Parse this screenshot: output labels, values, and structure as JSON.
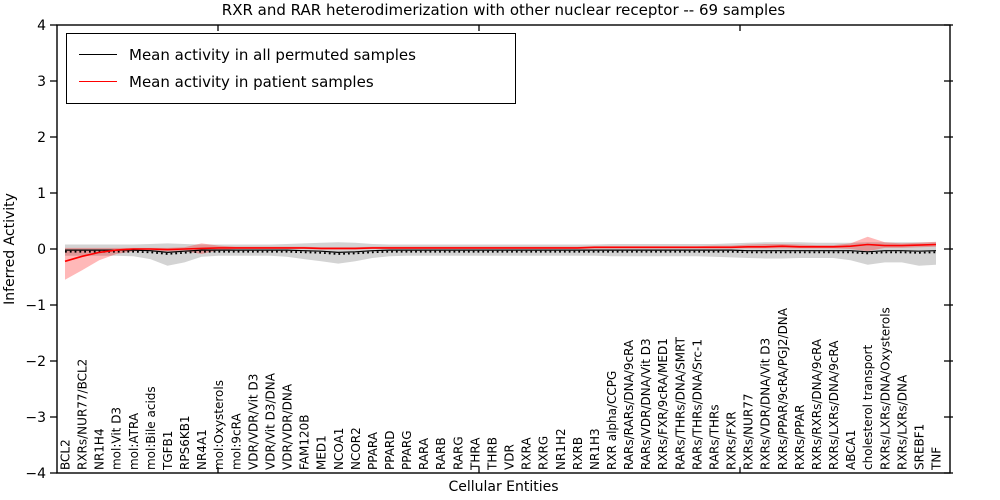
{
  "title": "RXR and RAR heterodimerization with other nuclear receptor -- 69 samples",
  "legend": {
    "items": [
      {
        "label": "Mean activity in all permuted samples",
        "color": "#000000"
      },
      {
        "label": "Mean activity in patient samples",
        "color": "#ff0000"
      }
    ]
  },
  "chart_data": {
    "type": "line",
    "title": "RXR and RAR heterodimerization with other nuclear receptor -- 69 samples",
    "xlabel": "Cellular Entities",
    "ylabel": "Inferred Activity",
    "ylim": [
      -4,
      4
    ],
    "yticks": [
      4,
      3,
      2,
      1,
      0,
      -1,
      -2,
      -3,
      -4
    ],
    "grid": false,
    "legend_position": "upper left",
    "categories": [
      "BCL2",
      "RXRs/NUR77/BCL2",
      "NR1H4",
      "mol:Vit D3",
      "mol:ATRA",
      "mol:Bile acids",
      "TGFB1",
      "RPS6KB1",
      "NR4A1",
      "mol:Oxysterols",
      "mol:9cRA",
      "VDR/VDR/Vit D3",
      "VDR/Vit D3/DNA",
      "VDR/VDR/DNA",
      "FAM120B",
      "MED1",
      "NCOA1",
      "NCOR2",
      "PPARA",
      "PPARD",
      "PPARG",
      "RARA",
      "RARB",
      "RARG",
      "THRA",
      "THRB",
      "VDR",
      "RXRA",
      "RXRG",
      "NR1H2",
      "RXRB",
      "NR1H3",
      "RXR alpha/CCPG",
      "RARs/RARs/DNA/9cRA",
      "RARs/VDR/DNA/Vit D3",
      "RXRs/FXR/9cRA/MED1",
      "RARs/THRs/DNA/SMRT",
      "RARs/THRs/DNA/Src-1",
      "RARs/THRs",
      "RXRs/FXR",
      "RXRs/NUR77",
      "RXRs/VDR/DNA/Vit D3",
      "RXRs/PPAR/9cRA/PGJ2/DNA",
      "RXRs/PPAR",
      "RXRs/RXRs/DNA/9cRA",
      "RXRs/LXRs/DNA/9cRA",
      "ABCA1",
      "cholesterol transport",
      "RXRs/LXRs/DNA/Oxysterols",
      "RXRs/LXRs/DNA",
      "SREBF1",
      "TNF"
    ],
    "series": [
      {
        "name": "Mean activity in all permuted samples",
        "color": "#000000",
        "band_color": "rgba(128,128,128,0.35)",
        "overlay_dotted": true,
        "values": [
          -0.02,
          -0.02,
          -0.02,
          -0.02,
          -0.02,
          -0.03,
          -0.06,
          -0.04,
          -0.02,
          -0.02,
          -0.02,
          -0.02,
          -0.02,
          -0.02,
          -0.03,
          -0.04,
          -0.06,
          -0.05,
          -0.03,
          -0.02,
          -0.02,
          -0.02,
          -0.02,
          -0.02,
          -0.02,
          -0.02,
          -0.02,
          -0.02,
          -0.02,
          -0.02,
          -0.02,
          -0.02,
          -0.02,
          -0.02,
          -0.02,
          -0.02,
          -0.02,
          -0.02,
          -0.02,
          -0.02,
          -0.03,
          -0.03,
          -0.03,
          -0.03,
          -0.03,
          -0.03,
          -0.03,
          -0.05,
          -0.03,
          -0.03,
          -0.04,
          -0.03
        ],
        "band_upper": [
          0.08,
          0.08,
          0.08,
          0.08,
          0.08,
          0.09,
          0.1,
          0.09,
          0.08,
          0.08,
          0.08,
          0.08,
          0.08,
          0.09,
          0.1,
          0.11,
          0.12,
          0.11,
          0.09,
          0.08,
          0.08,
          0.08,
          0.08,
          0.08,
          0.08,
          0.08,
          0.08,
          0.08,
          0.08,
          0.08,
          0.08,
          0.08,
          0.09,
          0.09,
          0.09,
          0.09,
          0.09,
          0.09,
          0.09,
          0.1,
          0.11,
          0.12,
          0.12,
          0.12,
          0.11,
          0.11,
          0.11,
          0.12,
          0.12,
          0.12,
          0.12,
          0.12
        ],
        "band_lower": [
          -0.12,
          -0.12,
          -0.12,
          -0.12,
          -0.13,
          -0.18,
          -0.3,
          -0.24,
          -0.14,
          -0.12,
          -0.12,
          -0.12,
          -0.12,
          -0.14,
          -0.18,
          -0.22,
          -0.26,
          -0.22,
          -0.16,
          -0.13,
          -0.12,
          -0.12,
          -0.12,
          -0.12,
          -0.12,
          -0.12,
          -0.12,
          -0.12,
          -0.12,
          -0.12,
          -0.12,
          -0.12,
          -0.13,
          -0.13,
          -0.13,
          -0.13,
          -0.13,
          -0.13,
          -0.14,
          -0.15,
          -0.16,
          -0.17,
          -0.17,
          -0.16,
          -0.16,
          -0.16,
          -0.2,
          -0.28,
          -0.24,
          -0.24,
          -0.3,
          -0.28
        ]
      },
      {
        "name": "Mean activity in patient samples",
        "color": "#ff0000",
        "band_color": "rgba(255,0,0,0.28)",
        "overlay_dotted": false,
        "values": [
          -0.22,
          -0.13,
          -0.06,
          -0.02,
          0.0,
          0.0,
          -0.01,
          0.0,
          0.01,
          0.02,
          0.02,
          0.02,
          0.02,
          0.02,
          0.02,
          0.01,
          0.01,
          0.01,
          0.02,
          0.02,
          0.02,
          0.02,
          0.02,
          0.02,
          0.02,
          0.02,
          0.02,
          0.02,
          0.02,
          0.02,
          0.02,
          0.03,
          0.03,
          0.03,
          0.03,
          0.03,
          0.03,
          0.03,
          0.03,
          0.03,
          0.04,
          0.04,
          0.05,
          0.04,
          0.04,
          0.04,
          0.05,
          0.08,
          0.06,
          0.06,
          0.07,
          0.08
        ],
        "band_upper": [
          0.02,
          0.02,
          0.02,
          0.02,
          0.02,
          0.02,
          0.02,
          0.03,
          0.1,
          0.06,
          0.04,
          0.04,
          0.04,
          0.04,
          0.04,
          0.03,
          0.03,
          0.03,
          0.04,
          0.04,
          0.04,
          0.04,
          0.04,
          0.04,
          0.04,
          0.04,
          0.04,
          0.04,
          0.04,
          0.04,
          0.04,
          0.05,
          0.05,
          0.05,
          0.05,
          0.05,
          0.05,
          0.05,
          0.06,
          0.06,
          0.08,
          0.09,
          0.09,
          0.08,
          0.07,
          0.07,
          0.1,
          0.22,
          0.12,
          0.1,
          0.11,
          0.13
        ],
        "band_lower": [
          -0.55,
          -0.38,
          -0.2,
          -0.09,
          -0.04,
          -0.03,
          -0.04,
          -0.04,
          -0.09,
          -0.02,
          0.0,
          0.0,
          0.0,
          0.0,
          0.0,
          -0.01,
          -0.01,
          -0.01,
          0.0,
          0.0,
          0.0,
          0.0,
          0.0,
          0.0,
          0.0,
          0.0,
          0.0,
          0.0,
          0.0,
          0.0,
          0.0,
          0.01,
          0.01,
          0.01,
          0.01,
          0.01,
          0.01,
          0.01,
          0.01,
          0.01,
          0.01,
          0.01,
          0.01,
          0.01,
          0.01,
          0.01,
          0.0,
          -0.04,
          0.02,
          0.02,
          0.03,
          0.04
        ]
      }
    ]
  }
}
